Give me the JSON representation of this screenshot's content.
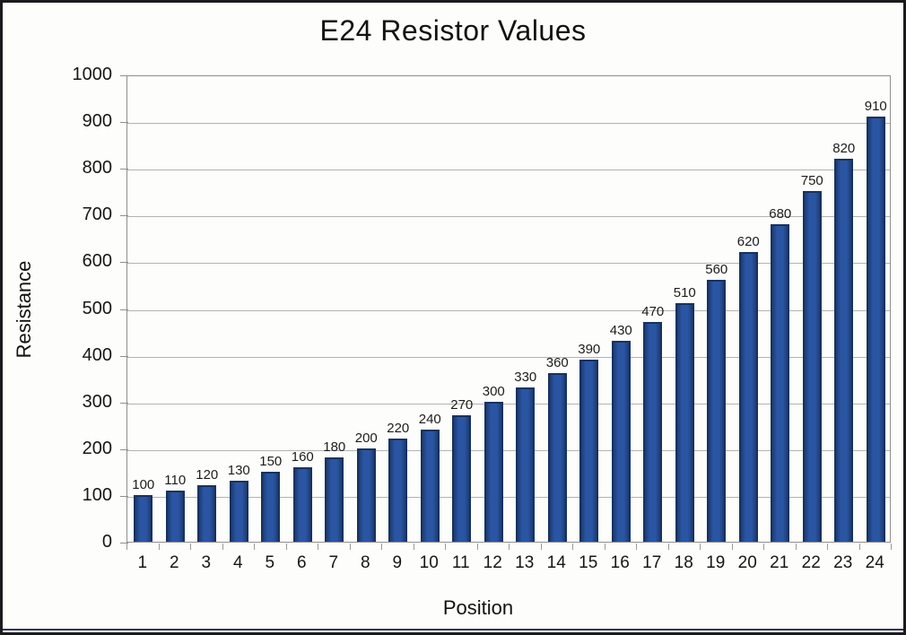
{
  "chart_data": {
    "type": "bar",
    "title": "E24 Resistor Values",
    "xlabel": "Position",
    "ylabel": "Resistance",
    "categories": [
      "1",
      "2",
      "3",
      "4",
      "5",
      "6",
      "7",
      "8",
      "9",
      "10",
      "11",
      "12",
      "13",
      "14",
      "15",
      "16",
      "17",
      "18",
      "19",
      "20",
      "21",
      "22",
      "23",
      "24"
    ],
    "values": [
      100,
      110,
      120,
      130,
      150,
      160,
      180,
      200,
      220,
      240,
      270,
      300,
      330,
      360,
      390,
      430,
      470,
      510,
      560,
      620,
      680,
      750,
      820,
      910
    ],
    "ylim": [
      0,
      1000
    ],
    "ytick_step": 100,
    "grid": true,
    "legend": "none",
    "data_labels": true,
    "colors": {
      "bar_fill": "#2a55a3",
      "bar_border": "#18325f",
      "gridline": "#b3b3b3",
      "axis": "#8f8f8f",
      "text": "#161616",
      "frame_border": "#1b1a1e",
      "bottom_line": "#2e3560"
    }
  }
}
